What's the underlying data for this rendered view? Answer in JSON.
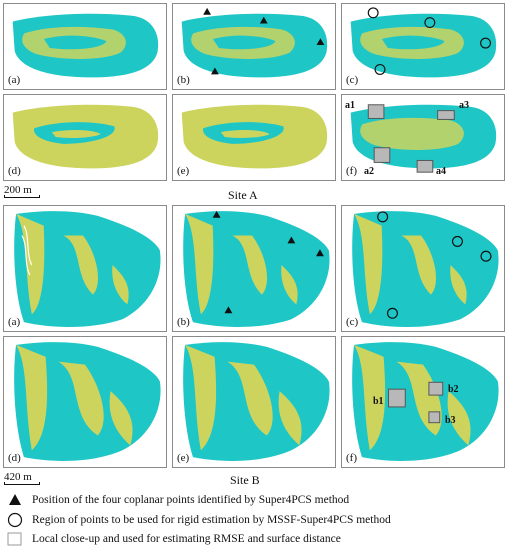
{
  "colors": {
    "cyan": "#1fc6c6",
    "yellow": "#cdd45e",
    "teal_dark": "#1a9e9e",
    "frame": "#8a8a8a"
  },
  "site_a": {
    "label": "Site A",
    "scale": "200 m",
    "panels": [
      "(a)",
      "(b)",
      "(c)",
      "(d)",
      "(e)",
      "(f)"
    ],
    "regions": [
      "a1",
      "a2",
      "a3",
      "a4"
    ]
  },
  "site_b": {
    "label": "Site B",
    "scale": "420 m",
    "panels": [
      "(a)",
      "(b)",
      "(c)",
      "(d)",
      "(e)",
      "(f)"
    ],
    "regions": [
      "b1",
      "b2",
      "b3"
    ]
  },
  "legend": {
    "triangle": "Position of the four coplanar points identified by Super4PCS method",
    "circle": "Region of points to be used for rigid estimation by MSSF-Super4PCS method",
    "square": "Local close-up and used for estimating RMSE and surface distance"
  }
}
